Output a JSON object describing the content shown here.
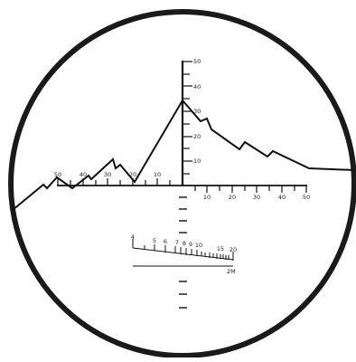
{
  "reticle": {
    "vertical_labels": [
      "10",
      "20",
      "30",
      "40",
      "50"
    ],
    "horizontal_left_labels": [
      "10",
      "20",
      "30",
      "40",
      "50"
    ],
    "horizontal_right_labels": [
      "10",
      "20",
      "30",
      "40",
      "50"
    ],
    "rangefinder_labels": [
      "4",
      "5",
      "6",
      "7",
      "8",
      "9",
      "10",
      "15",
      "20"
    ],
    "rangefinder_unit": "2M",
    "colors": {
      "ring": "#1a1a1a",
      "line": "#111111",
      "background": "#ffffff"
    }
  }
}
